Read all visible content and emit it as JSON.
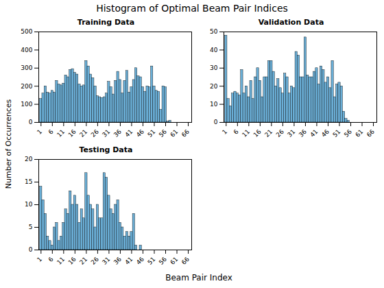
{
  "title": "Histogram of Optimal Beam Pair Indices",
  "xlabel": "Beam Pair Index",
  "ylabel": "Number of Occurrences",
  "chart_data": [
    {
      "type": "bar",
      "title": "Training Data",
      "x": [
        1,
        2,
        3,
        4,
        5,
        6,
        7,
        8,
        9,
        10,
        11,
        12,
        13,
        14,
        15,
        16,
        17,
        18,
        19,
        20,
        21,
        22,
        23,
        24,
        25,
        26,
        27,
        28,
        29,
        30,
        31,
        32,
        33,
        34,
        35,
        36,
        37,
        38,
        39,
        40,
        41,
        42,
        43,
        44,
        45,
        46,
        47,
        48,
        49,
        50,
        51,
        52,
        53,
        54,
        55,
        56,
        57,
        58,
        59,
        60,
        61,
        62,
        63,
        64,
        65,
        66
      ],
      "values": [
        130,
        160,
        200,
        165,
        160,
        175,
        165,
        230,
        210,
        205,
        215,
        260,
        250,
        290,
        295,
        275,
        265,
        210,
        200,
        205,
        340,
        310,
        265,
        245,
        200,
        145,
        140,
        135,
        140,
        160,
        225,
        195,
        155,
        230,
        280,
        235,
        160,
        230,
        285,
        165,
        195,
        235,
        300,
        255,
        250,
        195,
        170,
        200,
        195,
        310,
        200,
        175,
        170,
        70,
        200,
        195,
        5,
        10,
        0,
        0,
        0,
        0,
        0,
        0,
        0,
        0
      ],
      "color": "#6aaed6",
      "xlim": [
        0,
        67.5
      ],
      "xticks": [
        1,
        6,
        11,
        16,
        21,
        26,
        31,
        36,
        41,
        46,
        51,
        56,
        61,
        66
      ],
      "ylim": [
        0,
        500
      ],
      "yticks": [
        0,
        100,
        200,
        300,
        400,
        500
      ],
      "grid": false
    },
    {
      "type": "bar",
      "title": "Validation Data",
      "x": [
        1,
        2,
        3,
        4,
        5,
        6,
        7,
        8,
        9,
        10,
        11,
        12,
        13,
        14,
        15,
        16,
        17,
        18,
        19,
        20,
        21,
        22,
        23,
        24,
        25,
        26,
        27,
        28,
        29,
        30,
        31,
        32,
        33,
        34,
        35,
        36,
        37,
        38,
        39,
        40,
        41,
        42,
        43,
        44,
        45,
        46,
        47,
        48,
        49,
        50,
        51,
        52,
        53,
        54,
        55,
        56,
        57,
        58,
        59,
        60,
        61,
        62,
        63,
        64,
        65,
        66
      ],
      "values": [
        48,
        13,
        9,
        16,
        17,
        16,
        15,
        29,
        16,
        20,
        14,
        23,
        13,
        25,
        30,
        23,
        14,
        25,
        25,
        34,
        34,
        28,
        20,
        24,
        19,
        16,
        27,
        25,
        16,
        20,
        19,
        39,
        37,
        25,
        25,
        47,
        26,
        25,
        25,
        28,
        30,
        21,
        31,
        29,
        22,
        25,
        19,
        34,
        14,
        21,
        22,
        20,
        6,
        2,
        1,
        0,
        0,
        0,
        0,
        0,
        0,
        0,
        0,
        0,
        0,
        0
      ],
      "color": "#6aaed6",
      "xlim": [
        0,
        67.5
      ],
      "xticks": [
        1,
        6,
        11,
        16,
        21,
        26,
        31,
        36,
        41,
        46,
        51,
        56,
        61,
        66
      ],
      "ylim": [
        0,
        50
      ],
      "yticks": [
        0,
        10,
        20,
        30,
        40,
        50
      ],
      "grid": false
    },
    {
      "type": "bar",
      "title": "Testing Data",
      "x": [
        1,
        2,
        3,
        4,
        5,
        6,
        7,
        8,
        9,
        10,
        11,
        12,
        13,
        14,
        15,
        16,
        17,
        18,
        19,
        20,
        21,
        22,
        23,
        24,
        25,
        26,
        27,
        28,
        29,
        30,
        31,
        32,
        33,
        34,
        35,
        36,
        37,
        38,
        39,
        40,
        41,
        42,
        43,
        44,
        45,
        46,
        47,
        48,
        49,
        50,
        51,
        52,
        53,
        54,
        55,
        56,
        57,
        58,
        59,
        60,
        61,
        62,
        63,
        64,
        65,
        66
      ],
      "values": [
        14,
        11,
        8,
        3,
        2,
        1,
        5,
        6,
        2,
        3,
        6,
        9,
        8,
        13,
        10,
        12,
        10,
        6,
        9,
        7,
        17,
        12,
        10,
        9,
        5,
        10,
        7,
        7,
        17,
        16,
        12,
        9,
        8,
        10,
        11,
        6,
        5,
        3,
        4,
        3,
        4,
        8,
        1,
        0,
        1,
        0,
        0,
        0,
        0,
        0,
        0,
        0,
        0,
        0,
        0,
        0,
        0,
        0,
        0,
        0,
        0,
        0,
        0,
        0,
        0,
        0
      ],
      "color": "#6aaed6",
      "xlim": [
        0,
        67.5
      ],
      "xticks": [
        1,
        6,
        11,
        16,
        21,
        26,
        31,
        36,
        41,
        46,
        51,
        56,
        61,
        66
      ],
      "ylim": [
        0,
        20
      ],
      "yticks": [
        0,
        5,
        10,
        15,
        20
      ],
      "grid": false
    }
  ]
}
